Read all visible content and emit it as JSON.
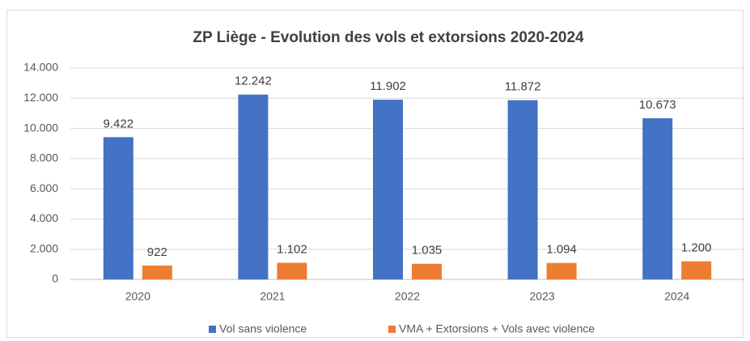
{
  "chart_data": {
    "type": "bar",
    "title": "ZP Liège - Evolution des vols et extorsions 2020-2024",
    "categories": [
      "2020",
      "2021",
      "2022",
      "2023",
      "2024"
    ],
    "series": [
      {
        "name": "Vol sans violence",
        "color": "#4472c4",
        "values": [
          9422,
          12242,
          11902,
          11872,
          10673
        ],
        "value_labels": [
          "9.422",
          "12.242",
          "11.902",
          "11.872",
          "10.673"
        ]
      },
      {
        "name": "VMA + Extorsions + Vols avec violence",
        "color": "#ed7d31",
        "values": [
          922,
          1102,
          1035,
          1094,
          1200
        ],
        "value_labels": [
          "922",
          "1.102",
          "1.035",
          "1.094",
          "1.200"
        ]
      }
    ],
    "ylim": [
      0,
      14000
    ],
    "yticks": [
      0,
      {
        "value": 2000,
        "label": "2.000"
      },
      {
        "value": 4000,
        "label": "4.000"
      },
      {
        "value": 6000,
        "label": "6.000"
      },
      {
        "value": 8000,
        "label": "8.000"
      },
      {
        "value": 10000,
        "label": "10.000"
      },
      {
        "value": 12000,
        "label": "12.000"
      },
      {
        "value": 14000,
        "label": "14.000"
      }
    ],
    "grid": true,
    "legend": "bottom"
  }
}
